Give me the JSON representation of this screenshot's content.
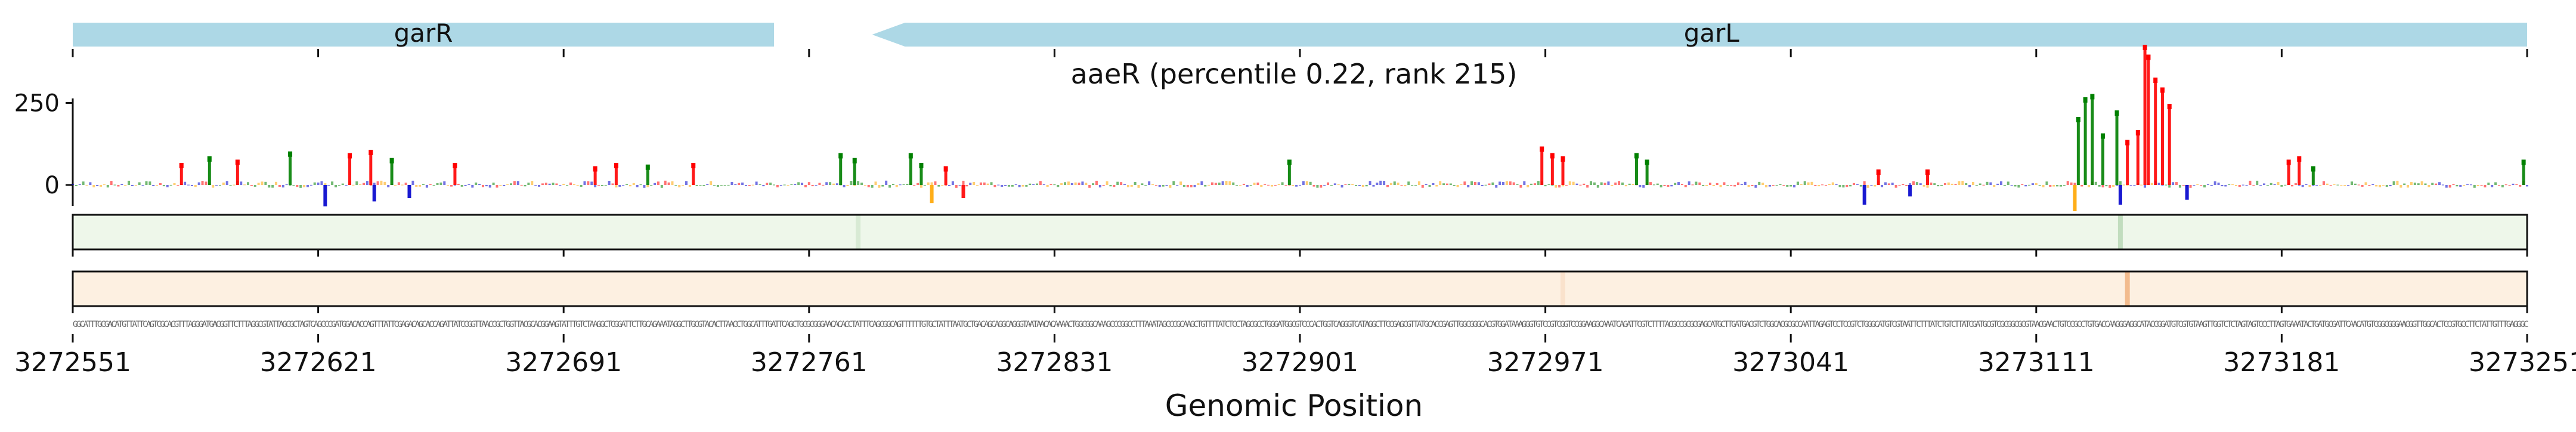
{
  "chart_data": {
    "type": "sequence-logo-track",
    "title": "aaeR (percentile 0.22, rank 215)",
    "xlabel": "Genomic Position",
    "ylabel": "",
    "xlim": [
      3272551,
      3273251
    ],
    "ylim": [
      -80,
      420
    ],
    "x_ticks": [
      3272551,
      3272621,
      3272691,
      3272761,
      3272831,
      3272901,
      3272971,
      3273041,
      3273111,
      3273181,
      3273251
    ],
    "x_tick_labels": [
      "3272551",
      "3272621",
      "3272691",
      "3272761",
      "3272831",
      "3272901",
      "3272971",
      "3273041",
      "3273111",
      "3273181",
      "3273251"
    ],
    "y_ticks": [
      0,
      250
    ],
    "y_tick_labels": [
      "0",
      "250"
    ],
    "genes": [
      {
        "name": "garR",
        "start": 3272551,
        "end": 3272751,
        "strand": "+",
        "color": "#add8e6"
      },
      {
        "name": "garL",
        "start": 3272779,
        "end": 3273251,
        "strand": "-",
        "color": "#add8e6"
      }
    ],
    "series": [
      {
        "name": "A",
        "color": "#008000"
      },
      {
        "name": "C",
        "color": "#0000cc"
      },
      {
        "name": "G",
        "color": "#ffa500"
      },
      {
        "name": "T",
        "color": "#ff0000"
      }
    ],
    "peaks": [
      {
        "x": 3272582,
        "value": 60,
        "base": "T"
      },
      {
        "x": 3272590,
        "value": 80,
        "base": "A"
      },
      {
        "x": 3272598,
        "value": 70,
        "base": "T"
      },
      {
        "x": 3272613,
        "value": 95,
        "base": "A"
      },
      {
        "x": 3272630,
        "value": 90,
        "base": "T"
      },
      {
        "x": 3272636,
        "value": 100,
        "base": "T"
      },
      {
        "x": 3272642,
        "value": 75,
        "base": "A"
      },
      {
        "x": 3272660,
        "value": 60,
        "base": "T"
      },
      {
        "x": 3272700,
        "value": 50,
        "base": "T"
      },
      {
        "x": 3272706,
        "value": 60,
        "base": "T"
      },
      {
        "x": 3272715,
        "value": 55,
        "base": "A"
      },
      {
        "x": 3272728,
        "value": 60,
        "base": "T"
      },
      {
        "x": 3272770,
        "value": 90,
        "base": "A"
      },
      {
        "x": 3272774,
        "value": 75,
        "base": "A"
      },
      {
        "x": 3272790,
        "value": 90,
        "base": "A"
      },
      {
        "x": 3272793,
        "value": 60,
        "base": "A"
      },
      {
        "x": 3272800,
        "value": 50,
        "base": "T"
      },
      {
        "x": 3272898,
        "value": 70,
        "base": "A"
      },
      {
        "x": 3272970,
        "value": 110,
        "base": "T"
      },
      {
        "x": 3272973,
        "value": 90,
        "base": "T"
      },
      {
        "x": 3272976,
        "value": 80,
        "base": "T"
      },
      {
        "x": 3272997,
        "value": 90,
        "base": "A"
      },
      {
        "x": 3273000,
        "value": 70,
        "base": "A"
      },
      {
        "x": 3273066,
        "value": 40,
        "base": "T"
      },
      {
        "x": 3273080,
        "value": 40,
        "base": "T"
      },
      {
        "x": 3273123,
        "value": 200,
        "base": "A"
      },
      {
        "x": 3273125,
        "value": 260,
        "base": "A"
      },
      {
        "x": 3273127,
        "value": 270,
        "base": "A"
      },
      {
        "x": 3273130,
        "value": 150,
        "base": "A"
      },
      {
        "x": 3273134,
        "value": 220,
        "base": "A"
      },
      {
        "x": 3273137,
        "value": 130,
        "base": "T"
      },
      {
        "x": 3273140,
        "value": 160,
        "base": "T"
      },
      {
        "x": 3273142,
        "value": 420,
        "base": "T"
      },
      {
        "x": 3273143,
        "value": 390,
        "base": "T"
      },
      {
        "x": 3273145,
        "value": 320,
        "base": "T"
      },
      {
        "x": 3273147,
        "value": 290,
        "base": "T"
      },
      {
        "x": 3273149,
        "value": 240,
        "base": "T"
      },
      {
        "x": 3273183,
        "value": 70,
        "base": "T"
      },
      {
        "x": 3273186,
        "value": 80,
        "base": "T"
      },
      {
        "x": 3273190,
        "value": 50,
        "base": "A"
      },
      {
        "x": 3273250,
        "value": 70,
        "base": "A"
      }
    ],
    "dips": [
      {
        "x": 3272623,
        "value": -65,
        "base": "C"
      },
      {
        "x": 3272637,
        "value": -50,
        "base": "C"
      },
      {
        "x": 3272647,
        "value": -40,
        "base": "C"
      },
      {
        "x": 3272796,
        "value": -55,
        "base": "G"
      },
      {
        "x": 3272805,
        "value": -40,
        "base": "T"
      },
      {
        "x": 3273062,
        "value": -60,
        "base": "C"
      },
      {
        "x": 3273075,
        "value": -35,
        "base": "C"
      },
      {
        "x": 3273122,
        "value": -80,
        "base": "G"
      },
      {
        "x": 3273135,
        "value": -60,
        "base": "C"
      },
      {
        "x": 3273154,
        "value": -45,
        "base": "C"
      }
    ],
    "heatmap_tracks": [
      {
        "color": "#3a8f3a",
        "hotspots": [
          {
            "x": 3273135,
            "value": 0.25
          },
          {
            "x": 3272775,
            "value": 0.12
          }
        ]
      },
      {
        "color": "#e8863a",
        "hotspots": [
          {
            "x": 3273137,
            "value": 0.5
          },
          {
            "x": 3272976,
            "value": 0.12
          }
        ]
      }
    ],
    "sequence": "GGCATTTGCGACATGTTATTCAGTCGCACGTTTAGGGATGACGGTTCTTTAGGCGTATTAGCGCTAGTCAGCCCGATGGACACCAGTTTATTCGAGACAGCACCAGATTATCCGGTTAACCGCTGGTTACGCACGGAAGTATTTGTCTAAGGCTCGGATTCTTGCAGAAATAGGCTTGCGTACACTTAACCTGGCATTTGATTCAGCTGCGCGGGAACACACCTATTTCAGCGGCAGTTTTTTGTGCTATTTAATGCTGACAGCAGGCAGGGTAATAACACAAAACTGGCGGCAAAGCCCGGCCTTTAAATAGCCCGCAAGCTGTTTTATCTCCTAGCGCCTGGGATGGCGTCCCACTGGTCAGGGTCATAGGCTTCCGAGCGTTATGCACCGAGTTGGCGGGCACGTGGATAAAGGGTGTCCGTCGGTCCGGAAGGCAAATCAGATTCGTCTTTTACGCCGCGCGAGCATGCTTGATGACGTCTGGCACGCGCCAATTAGAGTCCTCCGTCTGGGCATGTCGTAATTCTTTATCTGTCTTATCGATGCGTCGCGGCGCGTAACGAACTGTCCGCCTGTGACCAAGGGAGGCATACCGGATGTCGTGTAAGTTGGTCTCTAGTAGTCCCTTAGTGAAATACTGATGCGATTCAACATGTCGGCGGGAACGGTTGGCACTCCGTGCCTTCTATTGTTTGAGGGC"
  }
}
